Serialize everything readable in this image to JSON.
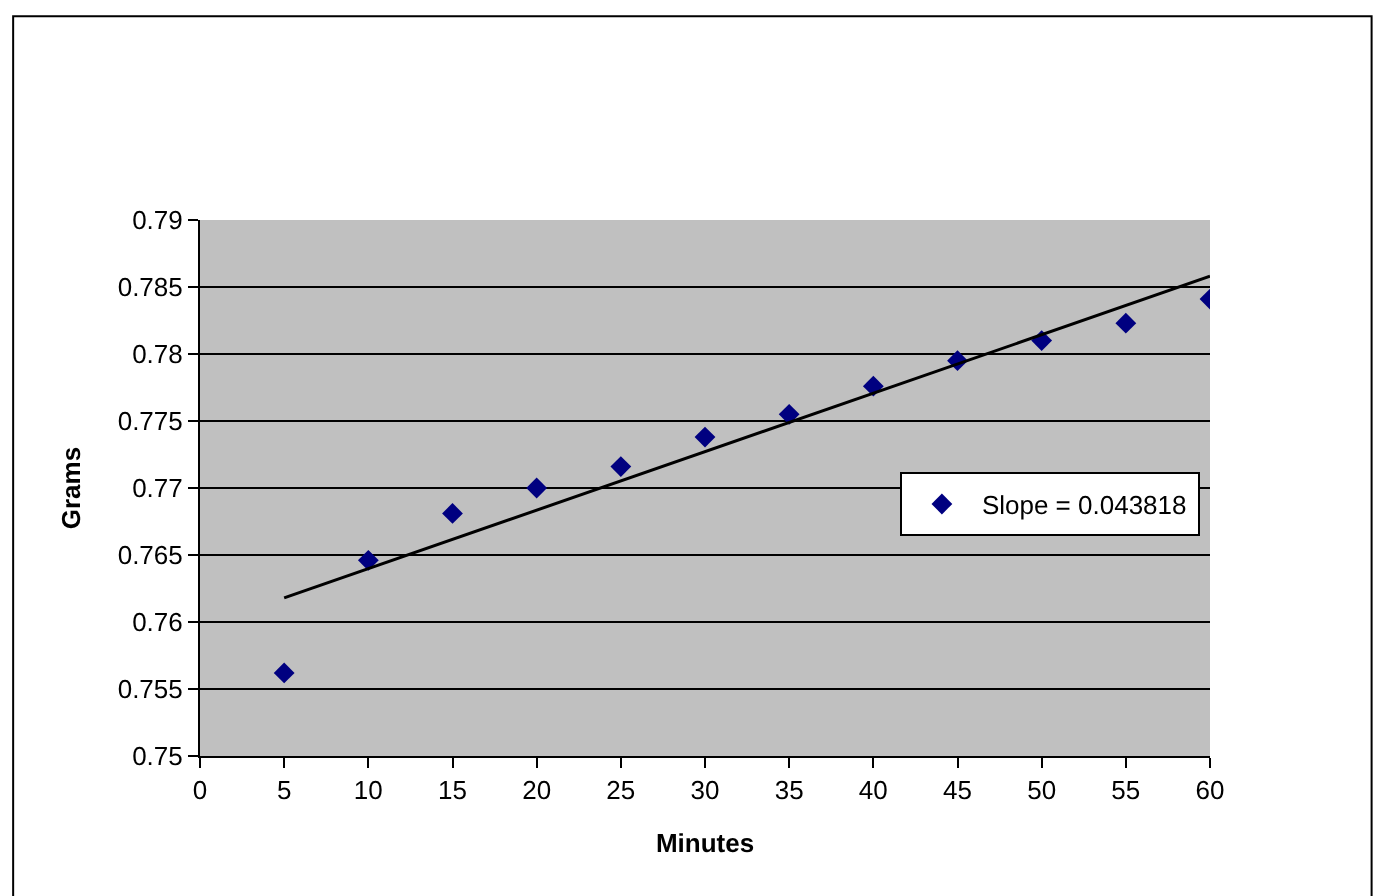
{
  "chart_data": {
    "type": "scatter",
    "xlabel": "Minutes",
    "ylabel": "Grams",
    "xlim": [
      0,
      60
    ],
    "xticks": [
      0,
      5,
      10,
      15,
      20,
      25,
      30,
      35,
      40,
      45,
      50,
      55,
      60
    ],
    "ylim": [
      0.75,
      0.79
    ],
    "yticks": [
      0.75,
      0.755,
      0.76,
      0.765,
      0.77,
      0.775,
      0.78,
      0.785,
      0.79
    ],
    "grid": "y",
    "legend": "right",
    "marker": "diamond",
    "series": [
      {
        "name": "Slope = 0.043818",
        "color": "#000080",
        "x": [
          5,
          10,
          15,
          20,
          25,
          30,
          35,
          40,
          45,
          50,
          55,
          60
        ],
        "values": [
          0.7562,
          0.7646,
          0.7681,
          0.77,
          0.7716,
          0.7738,
          0.7755,
          0.7776,
          0.7795,
          0.781,
          0.7823,
          0.7841
        ]
      },
      {
        "type": "line",
        "marker": "none",
        "color": "#000000",
        "x": [
          5,
          60
        ],
        "values": [
          0.7618,
          0.7858
        ]
      }
    ]
  }
}
